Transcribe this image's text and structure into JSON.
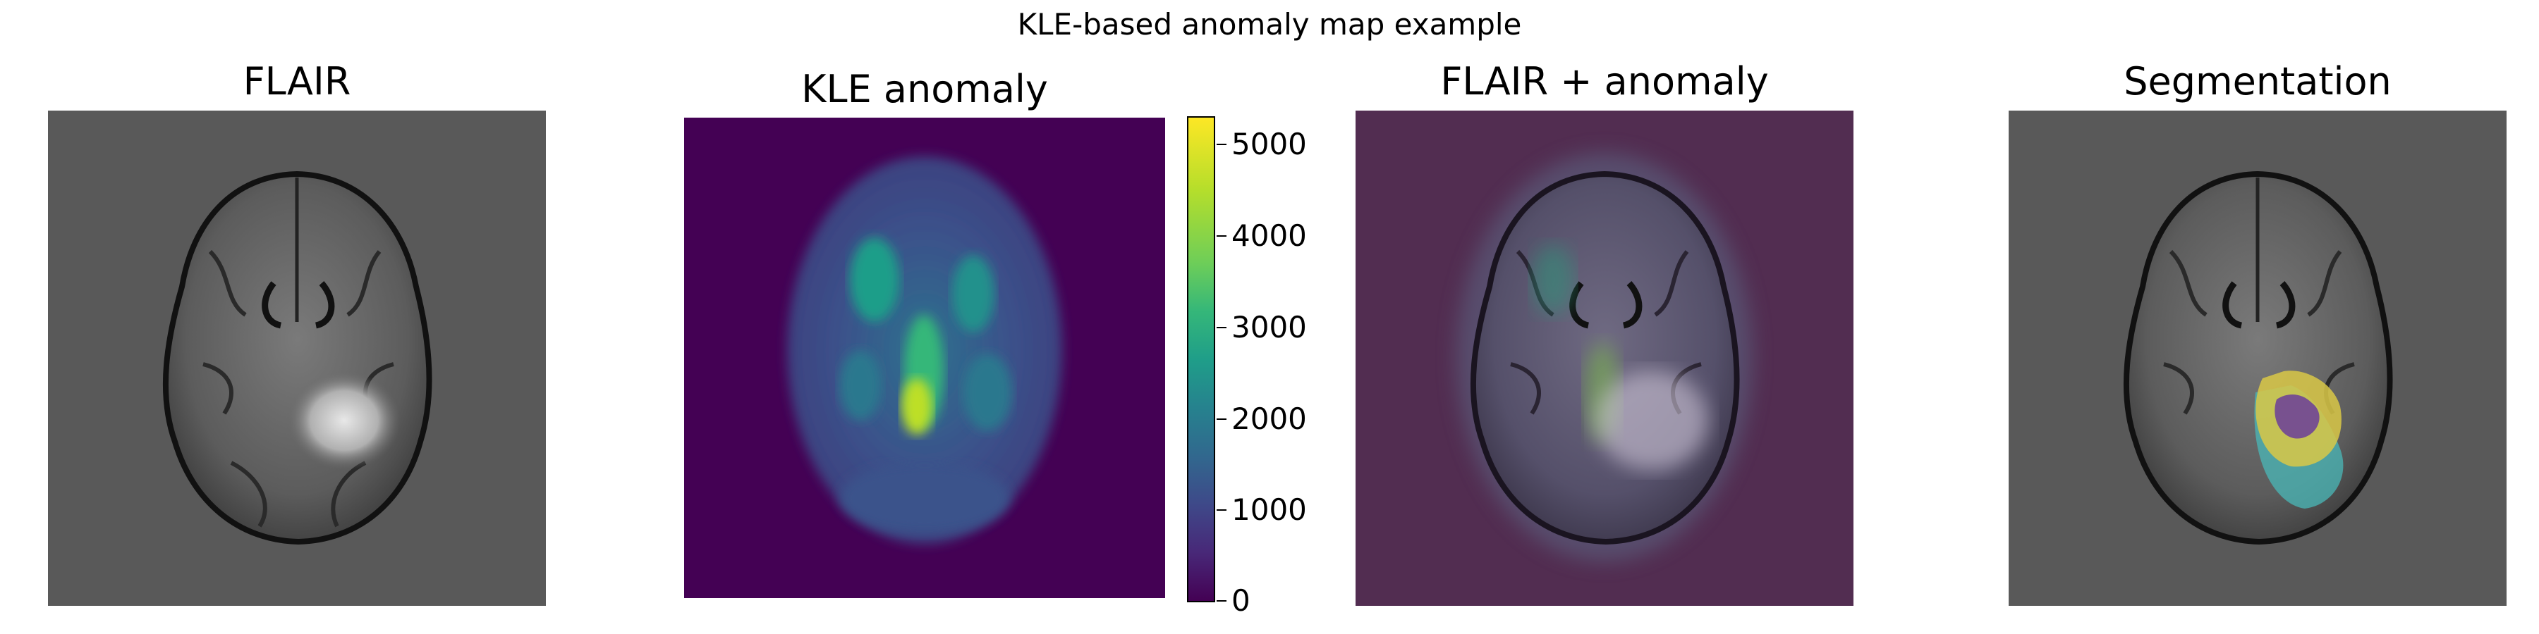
{
  "figure": {
    "suptitle": "KLE-based anomaly map example"
  },
  "panels": [
    {
      "title": "FLAIR"
    },
    {
      "title": "KLE anomaly"
    },
    {
      "title": "FLAIR + anomaly"
    },
    {
      "title": "Segmentation"
    }
  ],
  "colorbar": {
    "ticks": [
      "0",
      "1000",
      "2000",
      "3000",
      "4000",
      "5000"
    ],
    "colormap": "viridis"
  },
  "colors": {
    "panel_background": "#595959",
    "anomaly_background": "#440154",
    "overlay_tint": "#522d51"
  }
}
